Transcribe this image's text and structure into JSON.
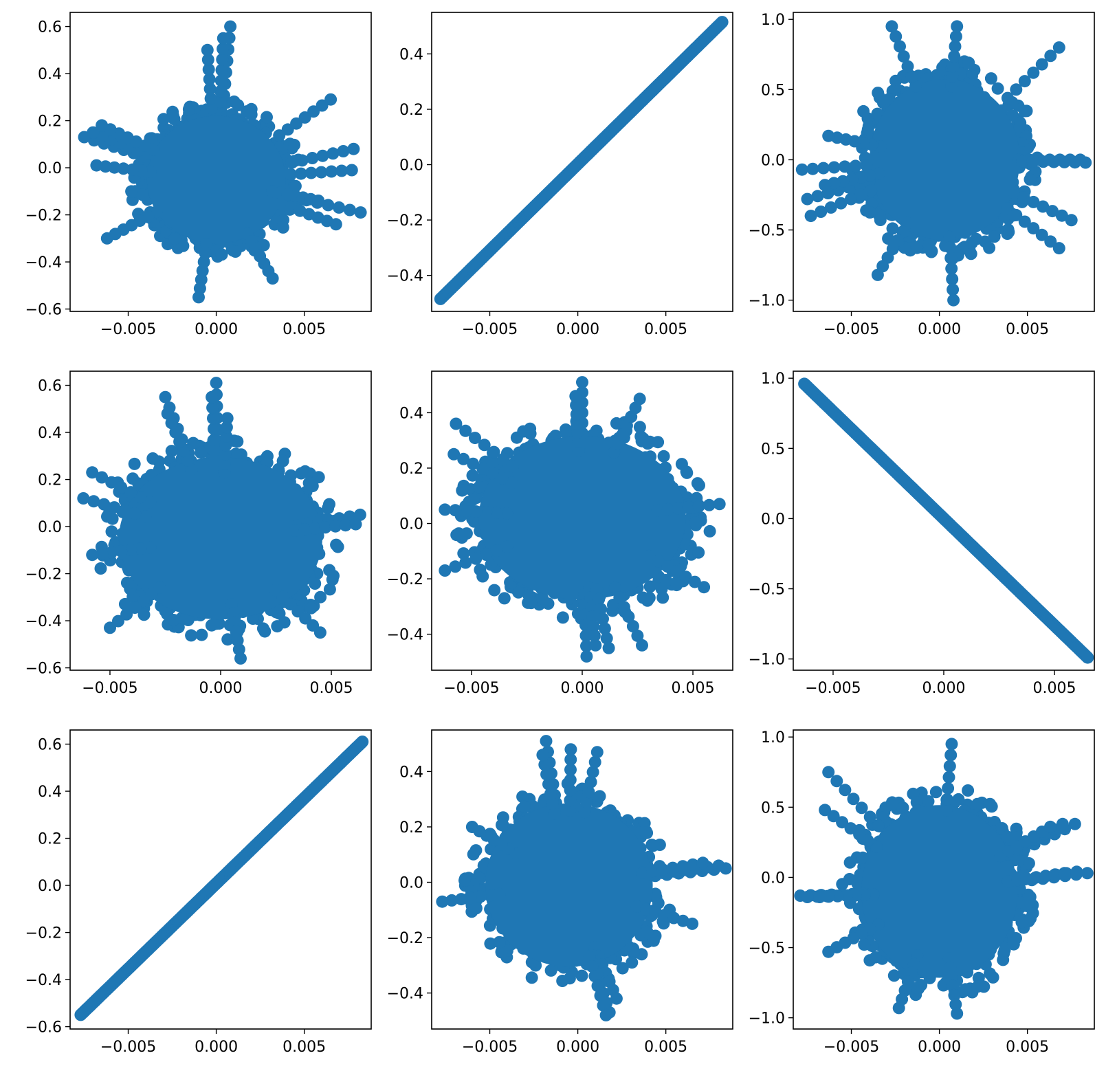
{
  "figure": {
    "grid": "3x3",
    "marker_color": "#1f77b4"
  },
  "chart_data": [
    {
      "type": "scatter",
      "shape": "blob",
      "xlim": [
        -0.0083,
        0.0088
      ],
      "ylim": [
        -0.61,
        0.66
      ],
      "xticks": [
        -0.005,
        0.0,
        0.005
      ],
      "xtick_labels": [
        "−0.005",
        "0.000",
        "0.005"
      ],
      "yticks": [
        -0.6,
        -0.4,
        -0.2,
        0.0,
        0.2,
        0.4,
        0.6
      ],
      "ytick_labels": [
        "−0.6",
        "−0.4",
        "−0.2",
        "0.0",
        "0.2",
        "0.4",
        "0.6"
      ],
      "center": [
        0.0,
        -0.05
      ],
      "spread": [
        0.0048,
        0.33
      ],
      "outliers": [
        [
          -0.0075,
          0.13
        ],
        [
          -0.007,
          0.15
        ],
        [
          -0.0065,
          0.18
        ],
        [
          -0.0068,
          0.01
        ],
        [
          -0.0062,
          -0.3
        ],
        [
          0.0008,
          0.6
        ],
        [
          0.0004,
          0.55
        ],
        [
          -0.0005,
          0.5
        ],
        [
          0.0078,
          0.08
        ],
        [
          0.0077,
          -0.01
        ],
        [
          0.0082,
          -0.19
        ],
        [
          0.0068,
          -0.24
        ],
        [
          0.0065,
          0.29
        ],
        [
          0.0058,
          -0.14
        ],
        [
          -0.001,
          -0.55
        ],
        [
          0.0032,
          -0.47
        ]
      ]
    },
    {
      "type": "scatter",
      "shape": "line",
      "xlim": [
        -0.0083,
        0.0088
      ],
      "ylim": [
        -0.53,
        0.55
      ],
      "xticks": [
        -0.005,
        0.0,
        0.005
      ],
      "xtick_labels": [
        "−0.005",
        "0.000",
        "0.005"
      ],
      "yticks": [
        -0.4,
        -0.2,
        0.0,
        0.2,
        0.4
      ],
      "ytick_labels": [
        "−0.4",
        "−0.2",
        "0.0",
        "0.2",
        "0.4"
      ],
      "from": [
        -0.0078,
        -0.485
      ],
      "to": [
        0.0082,
        0.515
      ]
    },
    {
      "type": "scatter",
      "shape": "blob",
      "xlim": [
        -0.0083,
        0.0088
      ],
      "ylim": [
        -1.08,
        1.05
      ],
      "xticks": [
        -0.005,
        0.0,
        0.005
      ],
      "xtick_labels": [
        "−0.005",
        "0.000",
        "0.005"
      ],
      "yticks": [
        -1.0,
        -0.5,
        0.0,
        0.5,
        1.0
      ],
      "ytick_labels": [
        "−1.0",
        "−0.5",
        "0.0",
        "0.5",
        "1.0"
      ],
      "center": [
        0.0003,
        0.0
      ],
      "spread": [
        0.0052,
        0.7
      ],
      "outliers": [
        [
          -0.0078,
          -0.07
        ],
        [
          -0.0075,
          -0.28
        ],
        [
          -0.0073,
          -0.4
        ],
        [
          -0.0065,
          -0.18
        ],
        [
          -0.0063,
          0.17
        ],
        [
          0.008,
          0.0
        ],
        [
          0.0083,
          -0.02
        ],
        [
          0.0075,
          -0.43
        ],
        [
          0.0068,
          -0.63
        ],
        [
          0.0068,
          0.8
        ],
        [
          -0.0027,
          0.95
        ],
        [
          0.001,
          0.95
        ],
        [
          0.0008,
          -1.0
        ],
        [
          -0.0035,
          -0.82
        ]
      ]
    },
    {
      "type": "scatter",
      "shape": "blob",
      "xlim": [
        -0.0068,
        0.0068
      ],
      "ylim": [
        -0.61,
        0.66
      ],
      "xticks": [
        -0.005,
        0.0,
        0.005
      ],
      "xtick_labels": [
        "−0.005",
        "0.000",
        "0.005"
      ],
      "yticks": [
        -0.6,
        -0.4,
        -0.2,
        0.0,
        0.2,
        0.4,
        0.6
      ],
      "ytick_labels": [
        "−0.6",
        "−0.4",
        "−0.2",
        "0.0",
        "0.2",
        "0.4",
        "0.6"
      ],
      "center": [
        0.0,
        -0.05
      ],
      "spread": [
        0.0056,
        0.42
      ],
      "outliers": [
        [
          -0.0062,
          0.12
        ],
        [
          -0.0058,
          0.23
        ],
        [
          -0.0058,
          -0.12
        ],
        [
          0.0063,
          0.05
        ],
        [
          0.0061,
          0.01
        ],
        [
          -0.0025,
          0.55
        ],
        [
          -0.0024,
          0.48
        ],
        [
          -0.0002,
          0.61
        ],
        [
          -0.0004,
          0.55
        ],
        [
          0.0003,
          0.46
        ],
        [
          0.0009,
          -0.56
        ],
        [
          -0.005,
          -0.43
        ],
        [
          0.0045,
          -0.45
        ]
      ]
    },
    {
      "type": "scatter",
      "shape": "blob",
      "xlim": [
        -0.0068,
        0.0068
      ],
      "ylim": [
        -0.53,
        0.55
      ],
      "xticks": [
        -0.005,
        0.0,
        0.005
      ],
      "xtick_labels": [
        "−0.005",
        "0.000",
        "0.005"
      ],
      "yticks": [
        -0.4,
        -0.2,
        0.0,
        0.2,
        0.4
      ],
      "ytick_labels": [
        "−0.4",
        "−0.2",
        "0.0",
        "0.2",
        "0.4"
      ],
      "center": [
        0.0,
        0.02
      ],
      "spread": [
        0.0057,
        0.36
      ],
      "outliers": [
        [
          -0.0062,
          0.05
        ],
        [
          -0.0062,
          -0.17
        ],
        [
          -0.0057,
          0.36
        ],
        [
          -0.0058,
          0.25
        ],
        [
          0.0062,
          0.07
        ],
        [
          0.0055,
          -0.23
        ],
        [
          0.0,
          0.51
        ],
        [
          -0.0003,
          0.46
        ],
        [
          0.0026,
          0.45
        ],
        [
          0.0002,
          -0.48
        ],
        [
          0.0006,
          -0.44
        ],
        [
          0.0027,
          -0.44
        ],
        [
          0.0012,
          -0.45
        ]
      ]
    },
    {
      "type": "scatter",
      "shape": "line",
      "xlim": [
        -0.0068,
        0.0068
      ],
      "ylim": [
        -1.08,
        1.05
      ],
      "xticks": [
        -0.005,
        0.0,
        0.005
      ],
      "xtick_labels": [
        "−0.005",
        "0.000",
        "0.005"
      ],
      "yticks": [
        -1.0,
        -0.5,
        0.0,
        0.5,
        1.0
      ],
      "ytick_labels": [
        "−1.0",
        "−0.5",
        "0.0",
        "0.5",
        "1.0"
      ],
      "from": [
        -0.0063,
        0.96
      ],
      "to": [
        0.0065,
        -0.99
      ]
    },
    {
      "type": "scatter",
      "shape": "line",
      "xlim": [
        -0.0083,
        0.0088
      ],
      "ylim": [
        -0.61,
        0.66
      ],
      "xticks": [
        -0.005,
        0.0,
        0.005
      ],
      "xtick_labels": [
        "−0.005",
        "0.000",
        "0.005"
      ],
      "yticks": [
        -0.6,
        -0.4,
        -0.2,
        0.0,
        0.2,
        0.4,
        0.6
      ],
      "ytick_labels": [
        "−0.6",
        "−0.4",
        "−0.2",
        "0.0",
        "0.2",
        "0.4",
        "0.6"
      ],
      "from": [
        -0.0077,
        -0.55
      ],
      "to": [
        0.0083,
        0.61
      ]
    },
    {
      "type": "scatter",
      "shape": "blob",
      "xlim": [
        -0.0083,
        0.0088
      ],
      "ylim": [
        -0.53,
        0.55
      ],
      "xticks": [
        -0.005,
        0.0,
        0.005
      ],
      "xtick_labels": [
        "−0.005",
        "0.000",
        "0.005"
      ],
      "yticks": [
        -0.4,
        -0.2,
        0.0,
        0.2,
        0.4
      ],
      "ytick_labels": [
        "−0.4",
        "−0.2",
        "0.0",
        "0.2",
        "0.4"
      ],
      "center": [
        -0.0005,
        -0.01
      ],
      "spread": [
        0.0058,
        0.36
      ],
      "outliers": [
        [
          -0.0077,
          -0.07
        ],
        [
          0.0084,
          0.05
        ],
        [
          0.008,
          0.06
        ],
        [
          0.0071,
          0.07
        ],
        [
          0.0065,
          -0.15
        ],
        [
          -0.0018,
          0.51
        ],
        [
          -0.002,
          0.46
        ],
        [
          -0.0004,
          0.48
        ],
        [
          0.0011,
          0.47
        ],
        [
          0.0022,
          -0.42
        ],
        [
          0.0018,
          -0.47
        ],
        [
          0.0016,
          -0.48
        ],
        [
          -0.006,
          0.2
        ]
      ]
    },
    {
      "type": "scatter",
      "shape": "blob",
      "xlim": [
        -0.0083,
        0.0088
      ],
      "ylim": [
        -1.08,
        1.05
      ],
      "xticks": [
        -0.005,
        0.0,
        0.005
      ],
      "xtick_labels": [
        "−0.005",
        "0.000",
        "0.005"
      ],
      "yticks": [
        -1.0,
        -0.5,
        0.0,
        0.5,
        1.0
      ],
      "ytick_labels": [
        "−1.0",
        "−0.5",
        "0.0",
        "0.5",
        "1.0"
      ],
      "center": [
        0.0,
        -0.1
      ],
      "spread": [
        0.0054,
        0.75
      ],
      "outliers": [
        [
          -0.0079,
          -0.13
        ],
        [
          -0.0075,
          -0.14
        ],
        [
          -0.0068,
          -0.14
        ],
        [
          0.0084,
          0.03
        ],
        [
          0.0078,
          0.04
        ],
        [
          0.0071,
          0.03
        ],
        [
          0.0077,
          0.38
        ],
        [
          0.007,
          0.38
        ],
        [
          0.0063,
          0.36
        ],
        [
          -0.0065,
          0.48
        ],
        [
          -0.0063,
          0.75
        ],
        [
          -0.0063,
          -0.53
        ],
        [
          0.0007,
          0.95
        ],
        [
          0.001,
          -0.97
        ],
        [
          -0.0023,
          -0.93
        ]
      ]
    }
  ]
}
